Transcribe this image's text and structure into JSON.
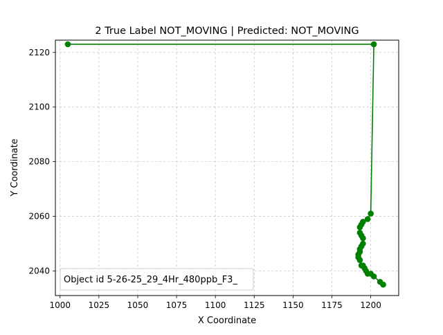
{
  "chart_data": {
    "type": "line",
    "title": "2 True Label NOT_MOVING | Predicted: NOT_MOVING",
    "xlabel": "X Coordinate",
    "ylabel": "Y Coordinate",
    "xlim": [
      997,
      1218
    ],
    "ylim": [
      2031,
      2124.5
    ],
    "xticks": [
      1000,
      1025,
      1050,
      1075,
      1100,
      1125,
      1150,
      1175,
      1200
    ],
    "yticks": [
      2040,
      2060,
      2080,
      2100,
      2120
    ],
    "grid": true,
    "legend_text": "Object id 5-26-25_29_4Hr_480ppb_F3_",
    "legend_position": "lower-left",
    "color": "#008000",
    "series": [
      {
        "x": [
          1005,
          1202,
          1200,
          1198,
          1195,
          1194,
          1193,
          1193,
          1194,
          1195,
          1195,
          1194,
          1193,
          1193,
          1192,
          1192,
          1193,
          1194,
          1195,
          1196,
          1197,
          1198,
          1200,
          1202,
          1206,
          1208
        ],
        "y": [
          2123,
          2123,
          2061,
          2059,
          2058,
          2057,
          2056,
          2054,
          2053,
          2052,
          2050,
          2049,
          2048,
          2047,
          2046,
          2045,
          2044,
          2042,
          2042,
          2041,
          2040,
          2039,
          2039,
          2038,
          2036,
          2035
        ]
      }
    ]
  }
}
